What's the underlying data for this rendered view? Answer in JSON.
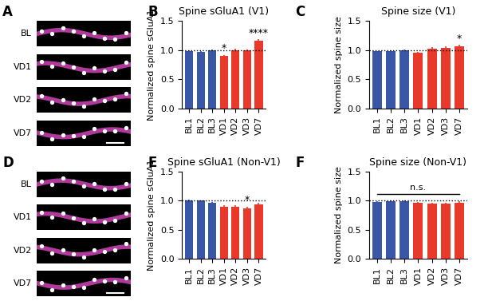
{
  "panels": [
    {
      "letter": "A",
      "rows": [
        "BL",
        "VD1",
        "VD2",
        "VD7"
      ]
    },
    {
      "letter": "D",
      "rows": [
        "BL",
        "VD1",
        "VD2",
        "VD7"
      ]
    }
  ],
  "chart_data": [
    {
      "letter": "B",
      "type": "bar",
      "title": "Spine sGluA1 (V1)",
      "y_label": "Normalized spine sGluA1",
      "categories": [
        "BL1",
        "BL2",
        "BL3",
        "VD1",
        "VD2",
        "VD3",
        "VD7"
      ],
      "values": [
        0.99,
        0.97,
        1.0,
        0.9,
        1.0,
        1.0,
        1.16
      ],
      "errors": [
        0.01,
        0.01,
        0.01,
        0.02,
        0.02,
        0.01,
        0.03
      ],
      "colors": [
        "#3a56a6",
        "#3a56a6",
        "#3a56a6",
        "#e8392b",
        "#e8392b",
        "#e8392b",
        "#e8392b"
      ],
      "ylim": [
        0,
        1.5
      ],
      "yticks": [
        {
          "value": 0,
          "label": "0.0"
        },
        {
          "value": 0.5,
          "label": "0.5"
        },
        {
          "value": 1.0,
          "label": "1.0"
        },
        {
          "value": 1.5,
          "label": "1.5"
        }
      ],
      "annotations": [
        {
          "category": "VD1",
          "text": "*"
        },
        {
          "category": "VD7",
          "text": "****"
        }
      ]
    },
    {
      "letter": "C",
      "type": "bar",
      "title": "Spine size (V1)",
      "y_label": "Normalized spine size",
      "categories": [
        "BL1",
        "BL2",
        "BL3",
        "VD1",
        "VD2",
        "VD3",
        "VD7"
      ],
      "values": [
        0.98,
        0.99,
        1.0,
        0.95,
        1.03,
        1.04,
        1.06
      ],
      "errors": [
        0.01,
        0.01,
        0.01,
        0.02,
        0.02,
        0.03,
        0.03
      ],
      "colors": [
        "#3a56a6",
        "#3a56a6",
        "#3a56a6",
        "#e8392b",
        "#e8392b",
        "#e8392b",
        "#e8392b"
      ],
      "ylim": [
        0,
        1.5
      ],
      "yticks": [
        {
          "value": 0,
          "label": "0.0"
        },
        {
          "value": 0.5,
          "label": "0.5"
        },
        {
          "value": 1.0,
          "label": "1.0"
        },
        {
          "value": 1.5,
          "label": "1.5"
        }
      ],
      "annotations": [
        {
          "category": "VD7",
          "text": "*"
        }
      ]
    },
    {
      "letter": "E",
      "type": "bar",
      "title": "Spine sGluA1 (Non-V1)",
      "y_label": "Normalized spine sGluA1",
      "categories": [
        "BL1",
        "BL2",
        "BL3",
        "VD1",
        "VD2",
        "VD3",
        "VD7"
      ],
      "values": [
        1.01,
        1.0,
        0.97,
        0.89,
        0.89,
        0.87,
        0.93
      ],
      "errors": [
        0.01,
        0.01,
        0.01,
        0.03,
        0.03,
        0.03,
        0.03
      ],
      "colors": [
        "#3a56a6",
        "#3a56a6",
        "#3a56a6",
        "#e8392b",
        "#e8392b",
        "#e8392b",
        "#e8392b"
      ],
      "ylim": [
        0,
        1.5
      ],
      "yticks": [
        {
          "value": 0,
          "label": "0.0"
        },
        {
          "value": 0.5,
          "label": "0.5"
        },
        {
          "value": 1.0,
          "label": "1.0"
        },
        {
          "value": 1.5,
          "label": "1.5"
        }
      ],
      "annotations": [
        {
          "category": "VD3",
          "text": "*"
        }
      ]
    },
    {
      "letter": "F",
      "type": "bar",
      "title": "Spine size (Non-V1)",
      "y_label": "Normalized spine size",
      "categories": [
        "BL1",
        "BL2",
        "BL3",
        "VD1",
        "VD2",
        "VD3",
        "VD7"
      ],
      "values": [
        0.98,
        0.99,
        0.99,
        0.96,
        0.95,
        0.95,
        0.97
      ],
      "errors": [
        0.01,
        0.01,
        0.01,
        0.02,
        0.02,
        0.02,
        0.02
      ],
      "colors": [
        "#3a56a6",
        "#3a56a6",
        "#3a56a6",
        "#e8392b",
        "#e8392b",
        "#e8392b",
        "#e8392b"
      ],
      "ylim": [
        0,
        1.5
      ],
      "yticks": [
        {
          "value": 0,
          "label": "0.0"
        },
        {
          "value": 0.5,
          "label": "0.5"
        },
        {
          "value": 1.0,
          "label": "1.0"
        },
        {
          "value": 1.5,
          "label": "1.5"
        }
      ],
      "span_annotation": {
        "from": "BL1",
        "to": "VD7",
        "text": "n.s."
      }
    }
  ]
}
